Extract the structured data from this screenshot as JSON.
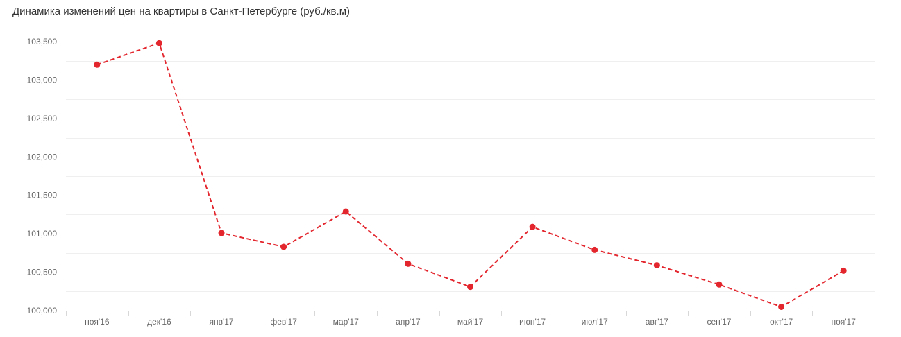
{
  "chart_data": {
    "type": "line",
    "title": "Динамика изменений цен на квартиры в Санкт-Петербурге (руб./кв.м)",
    "xlabel": "",
    "ylabel": "",
    "categories": [
      "ноя'16",
      "дек'16",
      "янв'17",
      "фев'17",
      "мар'17",
      "апр'17",
      "май'17",
      "июн'17",
      "июл'17",
      "авг'17",
      "сен'17",
      "окт'17",
      "ноя'17"
    ],
    "series": [
      {
        "values": [
          103200,
          103480,
          101010,
          100830,
          101290,
          100610,
          100310,
          101090,
          100790,
          100590,
          100340,
          100050,
          100520
        ]
      }
    ],
    "ylim": [
      100000,
      103500
    ],
    "y_ticks": [
      100000,
      100500,
      101000,
      101500,
      102000,
      102500,
      103000,
      103500
    ],
    "y_tick_labels": [
      "100,000",
      "100,500",
      "101,000",
      "101,500",
      "102,000",
      "102,500",
      "103,000",
      "103,500"
    ],
    "grid": true,
    "legend": "none",
    "line_style": "dashed",
    "colors": {
      "series": "#e3262e",
      "grid": "#d8d8d8",
      "text": "#666666"
    }
  }
}
